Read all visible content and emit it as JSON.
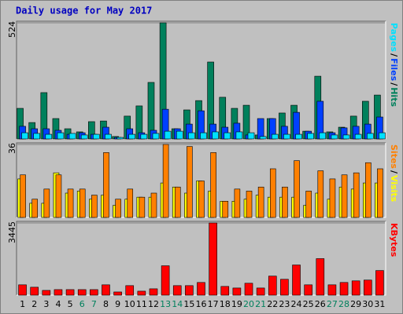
{
  "chart_data": [
    {
      "type": "bar",
      "title": "Daily usage for May 2017",
      "ylim": [
        0,
        524
      ],
      "yticks": [
        524
      ],
      "legend_separator": "/",
      "series": [
        {
          "name": "Hits",
          "color": "#00805c",
          "values": [
            138,
            74,
            209,
            92,
            46,
            32,
            78,
            81,
            11,
            103,
            149,
            255,
            524,
            46,
            131,
            173,
            347,
            188,
            138,
            152,
            18,
            92,
            117,
            152,
            35,
            283,
            32,
            53,
            103,
            170,
            198
          ]
        },
        {
          "name": "Files",
          "color": "#0040ff",
          "values": [
            57,
            46,
            46,
            39,
            21,
            28,
            21,
            53,
            7,
            46,
            28,
            39,
            134,
            46,
            67,
            127,
            67,
            53,
            71,
            18,
            92,
            92,
            57,
            120,
            35,
            170,
            28,
            50,
            57,
            67,
            99
          ]
        },
        {
          "name": "Pages",
          "color": "#00e0ff",
          "values": [
            28,
            25,
            21,
            28,
            25,
            18,
            21,
            21,
            7,
            21,
            21,
            25,
            35,
            35,
            28,
            28,
            32,
            28,
            32,
            28,
            11,
            21,
            21,
            21,
            25,
            28,
            18,
            18,
            21,
            25,
            28
          ]
        }
      ]
    },
    {
      "type": "bar",
      "ylim": [
        0,
        36
      ],
      "yticks": [
        36
      ],
      "legend_separator": "/",
      "series": [
        {
          "name": "Visits",
          "color": "#ffff00",
          "values": [
            19,
            7,
            7,
            22,
            12,
            13,
            9,
            11,
            6,
            9,
            10,
            10,
            17,
            15,
            12,
            18,
            13,
            8,
            8,
            9,
            11,
            10,
            10,
            10,
            6,
            12,
            9,
            15,
            14,
            17,
            17
          ]
        },
        {
          "name": "Sites",
          "color": "#ff8000",
          "values": [
            21,
            9,
            14,
            21,
            14,
            14,
            11,
            32,
            9,
            14,
            10,
            12,
            36,
            15,
            35,
            18,
            32,
            8,
            14,
            13,
            15,
            24,
            15,
            28,
            13,
            23,
            19,
            21,
            22,
            27,
            24
          ]
        }
      ]
    },
    {
      "type": "bar",
      "ylim": [
        0,
        3445
      ],
      "yticks": [
        3445
      ],
      "categories": [
        "1",
        "2",
        "3",
        "4",
        "5",
        "6",
        "7",
        "8",
        "9",
        "10",
        "11",
        "12",
        "13",
        "14",
        "15",
        "16",
        "17",
        "18",
        "19",
        "20",
        "21",
        "22",
        "23",
        "24",
        "25",
        "26",
        "27",
        "28",
        "29",
        "30",
        "31"
      ],
      "category_colors": [
        "#000000",
        "#000000",
        "#000000",
        "#000000",
        "#000000",
        "#00805c",
        "#00805c",
        "#000000",
        "#000000",
        "#000000",
        "#000000",
        "#000000",
        "#00805c",
        "#00805c",
        "#000000",
        "#000000",
        "#000000",
        "#000000",
        "#000000",
        "#00805c",
        "#00805c",
        "#000000",
        "#000000",
        "#000000",
        "#000000",
        "#000000",
        "#00805c",
        "#00805c",
        "#000000",
        "#000000",
        "#000000"
      ],
      "series": [
        {
          "name": "KBytes",
          "color": "#ff0000",
          "values": [
            493,
            379,
            227,
            265,
            265,
            265,
            265,
            493,
            152,
            455,
            190,
            303,
            1402,
            455,
            455,
            606,
            3445,
            417,
            341,
            569,
            341,
            909,
            758,
            1440,
            493,
            1743,
            493,
            606,
            682,
            720,
            1175
          ]
        }
      ]
    }
  ]
}
